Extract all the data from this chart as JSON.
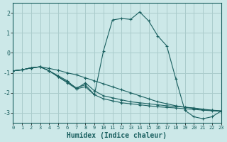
{
  "xlabel": "Humidex (Indice chaleur)",
  "xlim": [
    0,
    23
  ],
  "ylim": [
    -3.5,
    2.5
  ],
  "yticks": [
    -3,
    -2,
    -1,
    0,
    1,
    2
  ],
  "xticks": [
    0,
    1,
    2,
    3,
    4,
    5,
    6,
    7,
    8,
    9,
    10,
    11,
    12,
    13,
    14,
    15,
    16,
    17,
    18,
    19,
    20,
    21,
    22,
    23
  ],
  "bg_color": "#cce8e8",
  "grid_color": "#aacccc",
  "line_color": "#1a6060",
  "curves": [
    {
      "x": [
        0,
        1,
        2,
        3,
        4,
        5,
        6,
        7,
        8,
        9,
        10,
        11,
        12,
        13,
        14,
        15,
        16,
        17,
        18,
        19,
        20,
        21,
        22,
        23
      ],
      "y": [
        -0.9,
        -0.85,
        -0.75,
        -0.7,
        -0.78,
        -0.87,
        -1.0,
        -1.1,
        -1.25,
        -1.4,
        -1.55,
        -1.7,
        -1.85,
        -2.0,
        -2.15,
        -2.3,
        -2.45,
        -2.55,
        -2.65,
        -2.72,
        -2.78,
        -2.85,
        -2.88,
        -2.92
      ]
    },
    {
      "x": [
        0,
        1,
        2,
        3,
        4,
        5,
        6,
        7,
        8,
        9,
        10,
        11,
        12,
        13,
        14,
        15,
        16,
        17,
        18,
        19,
        20,
        21,
        22,
        23
      ],
      "y": [
        -0.9,
        -0.85,
        -0.75,
        -0.7,
        -0.9,
        -1.15,
        -1.4,
        -1.8,
        -1.5,
        -1.9,
        -2.15,
        -2.25,
        -2.35,
        -2.45,
        -2.5,
        -2.55,
        -2.6,
        -2.65,
        -2.68,
        -2.72,
        -2.76,
        -2.82,
        -2.87,
        -2.9
      ]
    },
    {
      "x": [
        0,
        1,
        2,
        3,
        4,
        5,
        6,
        7,
        8,
        9,
        10,
        11,
        12,
        13,
        14,
        15,
        16,
        17,
        18,
        19,
        20,
        21,
        22,
        23
      ],
      "y": [
        -0.9,
        -0.85,
        -0.75,
        -0.7,
        -0.9,
        -1.2,
        -1.45,
        -1.75,
        -1.6,
        -2.1,
        -2.3,
        -2.4,
        -2.5,
        -2.55,
        -2.6,
        -2.65,
        -2.7,
        -2.73,
        -2.76,
        -2.8,
        -2.83,
        -2.87,
        -2.9,
        -2.93
      ]
    },
    {
      "x": [
        0,
        1,
        2,
        3,
        4,
        5,
        6,
        7,
        8,
        9,
        10,
        11,
        12,
        13,
        14,
        15,
        16,
        17,
        18,
        19,
        20,
        21,
        22,
        23
      ],
      "y": [
        -0.9,
        -0.85,
        -0.75,
        -0.7,
        -0.9,
        -1.2,
        -1.5,
        -1.8,
        -1.7,
        -2.1,
        0.1,
        1.65,
        1.72,
        1.68,
        2.05,
        1.6,
        0.85,
        0.35,
        -1.3,
        -2.88,
        -3.2,
        -3.3,
        -3.2,
        -2.92
      ]
    }
  ]
}
